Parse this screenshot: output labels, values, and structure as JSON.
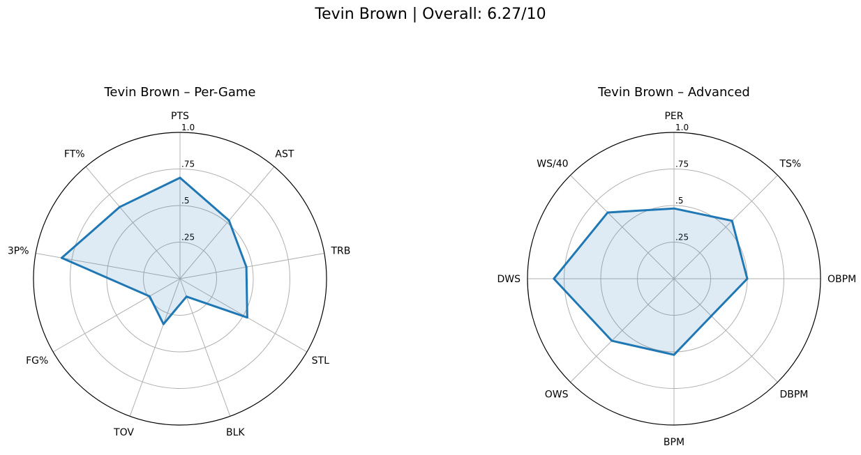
{
  "title": "Tevin Brown | Overall: 6.27/10",
  "chart_data": [
    {
      "type": "radar",
      "title": "Tevin Brown – Per-Game",
      "categories": [
        "PTS",
        "AST",
        "TRB",
        "STL",
        "BLK",
        "TOV",
        "FG%",
        "3P%",
        "FT%"
      ],
      "series": [
        {
          "values": [
            0.69,
            0.52,
            0.46,
            0.53,
            0.13,
            0.33,
            0.24,
            0.82,
            0.64
          ]
        }
      ],
      "rlim": [
        0,
        1.0
      ],
      "rticks": [
        ".25",
        ".5",
        ".75",
        "1.0"
      ],
      "grid": true,
      "color": "#1f77b4",
      "fill_color": "#1f77b4"
    },
    {
      "type": "radar",
      "title": "Tevin Brown – Advanced",
      "categories": [
        "PER",
        "TS%",
        "OBPM",
        "DBPM",
        "BPM",
        "OWS",
        "DWS",
        "WS/40"
      ],
      "series": [
        {
          "values": [
            0.48,
            0.56,
            0.5,
            0.36,
            0.52,
            0.6,
            0.82,
            0.64
          ]
        }
      ],
      "rlim": [
        0,
        1.0
      ],
      "rticks": [
        ".25",
        ".5",
        ".75",
        "1.0"
      ],
      "grid": true,
      "color": "#1f77b4",
      "fill_color": "#1f77b4"
    }
  ]
}
